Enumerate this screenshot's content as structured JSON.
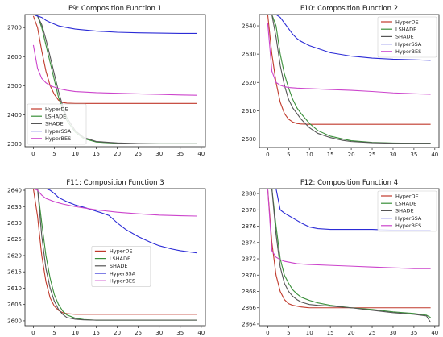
{
  "chart_data": [
    {
      "type": "line",
      "title": "F9: Composition Function 1",
      "xlabel": "",
      "ylabel": "",
      "xlim": [
        -2,
        41
      ],
      "ylim": [
        2290,
        2745
      ],
      "xticks": [
        0,
        5,
        10,
        15,
        20,
        25,
        30,
        35,
        40
      ],
      "yticks": [
        2300,
        2400,
        2500,
        2600,
        2700
      ],
      "legend_position": "bottom-left",
      "series": [
        {
          "name": "HyperDE",
          "color": "#c0392b",
          "x": [
            0,
            1,
            2,
            3,
            4,
            5,
            6,
            7,
            8,
            10,
            15,
            20,
            25,
            30,
            35,
            39
          ],
          "y": [
            2740,
            2700,
            2620,
            2550,
            2500,
            2470,
            2450,
            2442,
            2440,
            2439,
            2439,
            2439,
            2439,
            2439,
            2439,
            2439
          ]
        },
        {
          "name": "LSHADE",
          "color": "#3a8f3a",
          "x": [
            0,
            1,
            2,
            3,
            4,
            5,
            6,
            7,
            8,
            10,
            12,
            15,
            20,
            25,
            30,
            35,
            39
          ],
          "y": [
            2745,
            2740,
            2700,
            2640,
            2580,
            2520,
            2460,
            2420,
            2380,
            2340,
            2318,
            2306,
            2302,
            2300,
            2300,
            2300,
            2300
          ]
        },
        {
          "name": "SHADE",
          "color": "#555555",
          "x": [
            0,
            1,
            2,
            3,
            4,
            5,
            6,
            7,
            8,
            10,
            12,
            15,
            20,
            25,
            30,
            35,
            39
          ],
          "y": [
            2745,
            2740,
            2710,
            2660,
            2600,
            2540,
            2480,
            2430,
            2390,
            2345,
            2322,
            2308,
            2303,
            2301,
            2300,
            2300,
            2300
          ]
        },
        {
          "name": "HyperSSA",
          "color": "#2b2bd6",
          "x": [
            0,
            1,
            2,
            3,
            4,
            5,
            6,
            8,
            10,
            15,
            20,
            25,
            30,
            35,
            39
          ],
          "y": [
            2745,
            2740,
            2735,
            2725,
            2718,
            2712,
            2706,
            2700,
            2695,
            2688,
            2684,
            2682,
            2681,
            2680,
            2680
          ]
        },
        {
          "name": "HyperBES",
          "color": "#cc44cc",
          "x": [
            0,
            1,
            2,
            3,
            4,
            5,
            6,
            8,
            10,
            15,
            20,
            25,
            30,
            35,
            39
          ],
          "y": [
            2640,
            2560,
            2525,
            2510,
            2500,
            2495,
            2490,
            2484,
            2480,
            2476,
            2474,
            2472,
            2470,
            2468,
            2467
          ]
        }
      ]
    },
    {
      "type": "line",
      "title": "F10: Composition Function 2",
      "xlabel": "",
      "ylabel": "",
      "xlim": [
        -2,
        41
      ],
      "ylim": [
        2597,
        2644
      ],
      "xticks": [
        0,
        5,
        10,
        15,
        20,
        25,
        30,
        35,
        40
      ],
      "yticks": [
        2600,
        2610,
        2620,
        2630,
        2640
      ],
      "legend_position": "top-right",
      "series": [
        {
          "name": "HyperDE",
          "color": "#c0392b",
          "x": [
            0,
            1,
            2,
            3,
            4,
            5,
            6,
            7,
            8,
            10,
            15,
            20,
            25,
            30,
            35,
            39
          ],
          "y": [
            2644,
            2630,
            2620,
            2613,
            2609,
            2607,
            2606,
            2605.5,
            2605.3,
            2605.2,
            2605.2,
            2605.2,
            2605.2,
            2605.2,
            2605.2,
            2605.2
          ]
        },
        {
          "name": "LSHADE",
          "color": "#3a8f3a",
          "x": [
            0,
            1,
            2,
            3,
            4,
            5,
            6,
            7,
            8,
            10,
            12,
            15,
            18,
            20,
            25,
            30,
            35,
            39
          ],
          "y": [
            2644,
            2644,
            2640,
            2630,
            2623,
            2618,
            2614,
            2611,
            2609,
            2605.5,
            2603,
            2601,
            2600,
            2599.4,
            2598.8,
            2598.6,
            2598.5,
            2598.5
          ]
        },
        {
          "name": "SHADE",
          "color": "#555555",
          "x": [
            0,
            1,
            2,
            3,
            4,
            5,
            6,
            7,
            8,
            10,
            12,
            15,
            18,
            20,
            25,
            30,
            35,
            39
          ],
          "y": [
            2644,
            2644,
            2636,
            2626,
            2619,
            2614,
            2611,
            2609,
            2607,
            2604,
            2602,
            2600.5,
            2599.5,
            2599.1,
            2598.7,
            2598.5,
            2598.5,
            2598.5
          ]
        },
        {
          "name": "HyperSSA",
          "color": "#2b2bd6",
          "x": [
            0,
            1,
            2,
            3,
            4,
            5,
            6,
            7,
            8,
            10,
            12,
            15,
            20,
            25,
            30,
            35,
            39
          ],
          "y": [
            2644,
            2644,
            2644,
            2643,
            2641,
            2639,
            2637,
            2635.5,
            2634.5,
            2633,
            2632,
            2630.5,
            2629.3,
            2628.6,
            2628.2,
            2628,
            2627.8
          ]
        },
        {
          "name": "HyperBES",
          "color": "#cc44cc",
          "x": [
            0,
            1,
            2,
            3,
            4,
            5,
            7,
            10,
            15,
            20,
            25,
            30,
            35,
            39
          ],
          "y": [
            2641,
            2624,
            2620,
            2619,
            2618.5,
            2618.2,
            2618,
            2617.8,
            2617.5,
            2617.2,
            2616.8,
            2616.3,
            2616,
            2615.8
          ]
        }
      ]
    },
    {
      "type": "line",
      "title": "F11: Composition Function 3",
      "xlabel": "",
      "ylabel": "",
      "xlim": [
        -2,
        41
      ],
      "ylim": [
        2598.5,
        2640.5
      ],
      "xticks": [
        0,
        5,
        10,
        15,
        20,
        25,
        30,
        35,
        40
      ],
      "yticks": [
        2600,
        2605,
        2610,
        2615,
        2620,
        2625,
        2630,
        2635,
        2640
      ],
      "legend_position": "center",
      "series": [
        {
          "name": "HyperDE",
          "color": "#c0392b",
          "x": [
            0,
            1,
            2,
            3,
            4,
            5,
            6,
            7,
            8,
            10,
            15,
            20,
            25,
            30,
            35,
            39
          ],
          "y": [
            2640.5,
            2632,
            2620,
            2612,
            2607,
            2604.5,
            2603.2,
            2602.5,
            2602.2,
            2602,
            2602,
            2602,
            2602,
            2602,
            2602,
            2602
          ]
        },
        {
          "name": "LSHADE",
          "color": "#3a8f3a",
          "x": [
            0,
            1,
            2,
            3,
            4,
            5,
            6,
            7,
            8,
            10,
            12,
            15,
            20,
            25,
            30,
            35,
            39
          ],
          "y": [
            2640.5,
            2640.5,
            2630,
            2620,
            2613,
            2608,
            2605,
            2603,
            2601.8,
            2600.8,
            2600.4,
            2600.2,
            2600.2,
            2600.2,
            2600.2,
            2600.2,
            2600.2
          ]
        },
        {
          "name": "SHADE",
          "color": "#555555",
          "x": [
            0,
            1,
            2,
            3,
            4,
            5,
            6,
            7,
            8,
            10,
            12,
            15,
            20,
            25,
            30,
            35,
            39
          ],
          "y": [
            2640.5,
            2640.5,
            2626,
            2616,
            2610,
            2606,
            2603.5,
            2602,
            2601,
            2600.5,
            2600.3,
            2600.2,
            2600.2,
            2600.2,
            2600.2,
            2600.2,
            2600.2
          ]
        },
        {
          "name": "HyperSSA",
          "color": "#2b2bd6",
          "x": [
            0,
            1,
            2,
            3,
            4,
            5,
            6,
            8,
            10,
            12,
            14,
            16,
            18,
            20,
            22,
            25,
            28,
            30,
            33,
            35,
            39
          ],
          "y": [
            2640.5,
            2640.5,
            2640.5,
            2640.5,
            2640,
            2639,
            2637.8,
            2636.5,
            2635.5,
            2634.8,
            2634,
            2633.2,
            2632.3,
            2630,
            2628,
            2625.8,
            2624,
            2623,
            2622,
            2621.5,
            2620.8
          ]
        },
        {
          "name": "HyperBES",
          "color": "#cc44cc",
          "x": [
            0,
            1,
            2,
            3,
            4,
            5,
            7,
            10,
            15,
            20,
            25,
            30,
            35,
            39
          ],
          "y": [
            2640.5,
            2640,
            2638.5,
            2637.5,
            2637,
            2636.5,
            2635.8,
            2635,
            2634,
            2633.3,
            2632.8,
            2632.4,
            2632.2,
            2632.1
          ]
        }
      ]
    },
    {
      "type": "line",
      "title": "F12: Composition Function 4",
      "xlabel": "",
      "ylabel": "",
      "xlim": [
        -2,
        41
      ],
      "ylim": [
        2863.8,
        2880.6
      ],
      "xticks": [
        0,
        5,
        10,
        15,
        20,
        25,
        30,
        35,
        40
      ],
      "yticks": [
        2864,
        2866,
        2868,
        2870,
        2872,
        2874,
        2876,
        2878,
        2880
      ],
      "legend_position": "top-right",
      "series": [
        {
          "name": "HyperDE",
          "color": "#c0392b",
          "x": [
            0,
            1,
            2,
            3,
            4,
            5,
            6,
            7,
            8,
            10,
            15,
            20,
            25,
            30,
            35,
            39
          ],
          "y": [
            2880.6,
            2874,
            2870,
            2868,
            2867,
            2866.5,
            2866.3,
            2866.2,
            2866.1,
            2866,
            2866,
            2866,
            2866,
            2866,
            2866,
            2866
          ]
        },
        {
          "name": "LSHADE",
          "color": "#3a8f3a",
          "x": [
            0,
            1,
            2,
            3,
            4,
            5,
            6,
            7,
            8,
            10,
            12,
            15,
            20,
            25,
            30,
            35,
            38,
            39
          ],
          "y": [
            2880.6,
            2880.6,
            2876,
            2872,
            2870,
            2869,
            2868.2,
            2867.7,
            2867.3,
            2866.9,
            2866.6,
            2866.3,
            2866,
            2865.8,
            2865.5,
            2865.3,
            2865.1,
            2864.8
          ]
        },
        {
          "name": "SHADE",
          "color": "#555555",
          "x": [
            0,
            1,
            2,
            3,
            4,
            5,
            6,
            7,
            8,
            10,
            12,
            15,
            20,
            25,
            30,
            35,
            38,
            39
          ],
          "y": [
            2880.6,
            2880.6,
            2875,
            2871,
            2869,
            2868,
            2867.4,
            2867,
            2866.7,
            2866.4,
            2866.3,
            2866.2,
            2866,
            2865.7,
            2865.4,
            2865.2,
            2865,
            2864.2
          ]
        },
        {
          "name": "HyperSSA",
          "color": "#2b2bd6",
          "x": [
            0,
            1,
            2,
            3,
            4,
            5,
            6,
            7,
            8,
            10,
            12,
            15,
            20,
            25,
            30,
            35,
            39
          ],
          "y": [
            2880.6,
            2880.6,
            2880.6,
            2878,
            2877.6,
            2877.3,
            2877,
            2876.7,
            2876.4,
            2875.9,
            2875.7,
            2875.6,
            2875.6,
            2875.6,
            2875.5,
            2875.5,
            2875.5
          ]
        },
        {
          "name": "HyperBES",
          "color": "#cc44cc",
          "x": [
            0,
            1,
            2,
            3,
            4,
            5,
            7,
            10,
            15,
            20,
            25,
            30,
            35,
            39
          ],
          "y": [
            2880.6,
            2873,
            2872.2,
            2871.9,
            2871.7,
            2871.6,
            2871.4,
            2871.3,
            2871.2,
            2871.1,
            2871,
            2870.9,
            2870.8,
            2870.8
          ]
        }
      ]
    }
  ]
}
